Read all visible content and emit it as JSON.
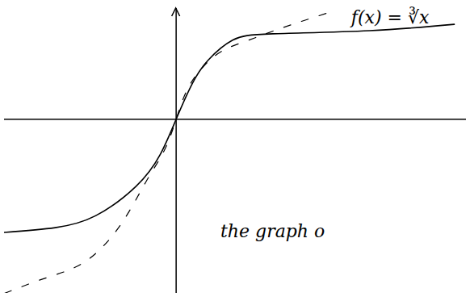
{
  "chart_data": {
    "type": "line",
    "xlim": [
      -2.13,
      3.6
    ],
    "ylim": [
      -2.2,
      1.4
    ],
    "xticks": [],
    "yticks": [],
    "tick_labels": false,
    "grid": false,
    "series": [
      {
        "color": "#000000",
        "line_style": "dashed",
        "x": [
          -2.13,
          -1.6,
          -1.13,
          -0.7,
          -0.38,
          -0.15,
          0,
          0.15,
          0.37,
          0.6,
          0.9,
          1.3,
          1.9
        ],
        "values": [
          -2.2,
          -2.0,
          -1.8,
          -1.35,
          -0.8,
          -0.4,
          0,
          0.4,
          0.7,
          0.88,
          1.0,
          1.15,
          1.35
        ]
      },
      {
        "color": "#000000",
        "line_style": "solid",
        "x": [
          -2.13,
          -1.5,
          -1.0,
          -0.5,
          -0.2,
          0,
          0.2,
          0.4,
          0.7,
          1.2,
          2.4,
          3.45
        ],
        "values": [
          -1.43,
          -1.37,
          -1.22,
          -0.85,
          -0.45,
          0,
          0.45,
          0.75,
          1.0,
          1.08,
          1.12,
          1.2
        ]
      }
    ],
    "annotations": [
      {
        "text": "f(x) = ∛x",
        "x": 2.17,
        "y": 1.28
      },
      {
        "text": "the graph o",
        "x": 0.55,
        "y": -1.42
      }
    ]
  }
}
